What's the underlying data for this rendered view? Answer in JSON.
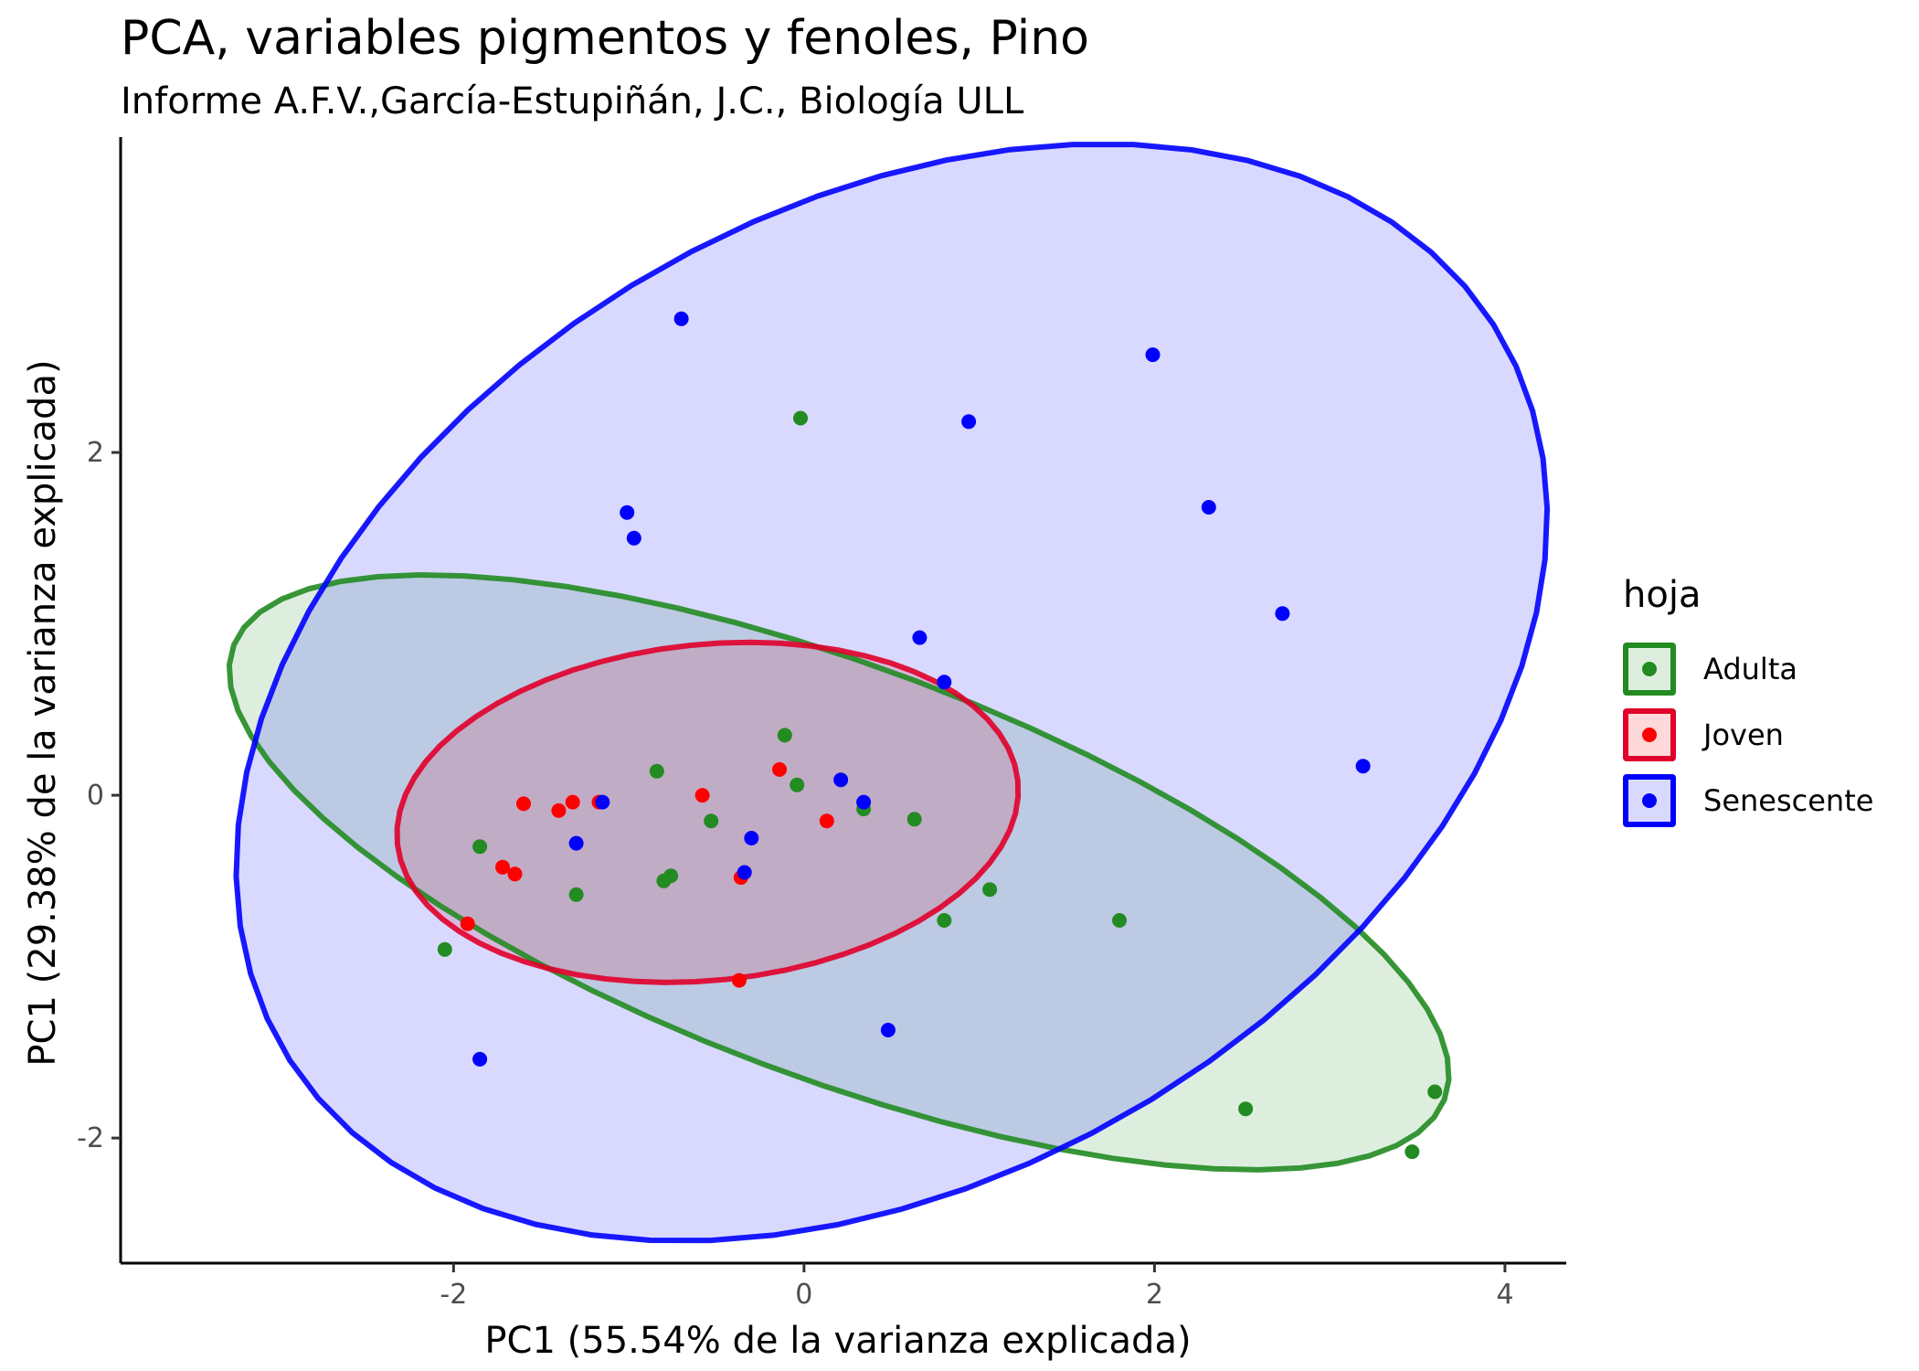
{
  "title": "PCA, variables pigmentos y fenoles, Pino",
  "subtitle": "Informe A.F.V.,García-Estupiñán, J.C., Biología ULL",
  "chart_data": {
    "type": "scatter",
    "title": "PCA, variables pigmentos y fenoles, Pino",
    "subtitle": "Informe A.F.V.,García-Estupiñán, J.C., Biología ULL",
    "xlabel": "PC1 (55.54% de la varianza explicada)",
    "ylabel": "PC1 (29.38% de la varianza explicada)",
    "xlim": [
      -3.9,
      4.35
    ],
    "ylim": [
      -2.73,
      3.84
    ],
    "xticks": [
      -2,
      0,
      2,
      4
    ],
    "yticks": [
      -2,
      0,
      2
    ],
    "xtick_labels": [
      "-2",
      "0",
      "2",
      "4"
    ],
    "ytick_labels": [
      "-2",
      "0",
      "2"
    ],
    "grid": false,
    "legend_title": "hoja",
    "legend_position": "right",
    "series": [
      {
        "name": "Adulta",
        "color": "#228B22",
        "ellipse": {
          "center": [
            0.2,
            -0.45
          ],
          "semi_major": 3.7,
          "semi_minor": 1.2,
          "angle_deg": -21
        },
        "points": [
          [
            -0.02,
            2.2
          ],
          [
            -0.84,
            0.14
          ],
          [
            -0.11,
            0.35
          ],
          [
            -0.04,
            0.06
          ],
          [
            -0.53,
            -0.15
          ],
          [
            0.34,
            -0.08
          ],
          [
            0.63,
            -0.14
          ],
          [
            -1.85,
            -0.3
          ],
          [
            -1.3,
            -0.58
          ],
          [
            -0.76,
            -0.47
          ],
          [
            -0.8,
            -0.5
          ],
          [
            0.8,
            -0.73
          ],
          [
            1.06,
            -0.55
          ],
          [
            1.8,
            -0.73
          ],
          [
            -2.05,
            -0.9
          ],
          [
            2.52,
            -1.83
          ],
          [
            3.6,
            -1.73
          ],
          [
            3.47,
            -2.08
          ]
        ]
      },
      {
        "name": "Joven",
        "color": "#FF0000",
        "ellipse": {
          "center": [
            -0.55,
            -0.1
          ],
          "semi_major": 1.78,
          "semi_minor": 0.98,
          "angle_deg": 6
        },
        "points": [
          [
            -1.6,
            -0.05
          ],
          [
            -1.4,
            -0.09
          ],
          [
            -1.32,
            -0.04
          ],
          [
            -1.17,
            -0.04
          ],
          [
            -0.58,
            0.0
          ],
          [
            -0.14,
            0.15
          ],
          [
            0.13,
            -0.15
          ],
          [
            -1.72,
            -0.42
          ],
          [
            -1.65,
            -0.46
          ],
          [
            -0.36,
            -0.48
          ],
          [
            -1.92,
            -0.75
          ],
          [
            -0.37,
            -1.08
          ]
        ]
      },
      {
        "name": "Senescente",
        "color": "#0000FF",
        "ellipse": {
          "center": [
            0.5,
            0.6
          ],
          "semi_major": 4.05,
          "semi_minor": 2.8,
          "angle_deg": 32
        },
        "points": [
          [
            -0.7,
            2.78
          ],
          [
            0.94,
            2.18
          ],
          [
            1.99,
            2.57
          ],
          [
            2.31,
            1.68
          ],
          [
            -1.01,
            1.65
          ],
          [
            -0.97,
            1.5
          ],
          [
            2.73,
            1.06
          ],
          [
            0.66,
            0.92
          ],
          [
            0.8,
            0.66
          ],
          [
            3.19,
            0.17
          ],
          [
            0.21,
            0.09
          ],
          [
            0.34,
            -0.04
          ],
          [
            -1.15,
            -0.04
          ],
          [
            -1.3,
            -0.28
          ],
          [
            -0.3,
            -0.25
          ],
          [
            -0.34,
            -0.45
          ],
          [
            0.48,
            -1.37
          ],
          [
            -1.85,
            -1.54
          ]
        ]
      }
    ]
  }
}
